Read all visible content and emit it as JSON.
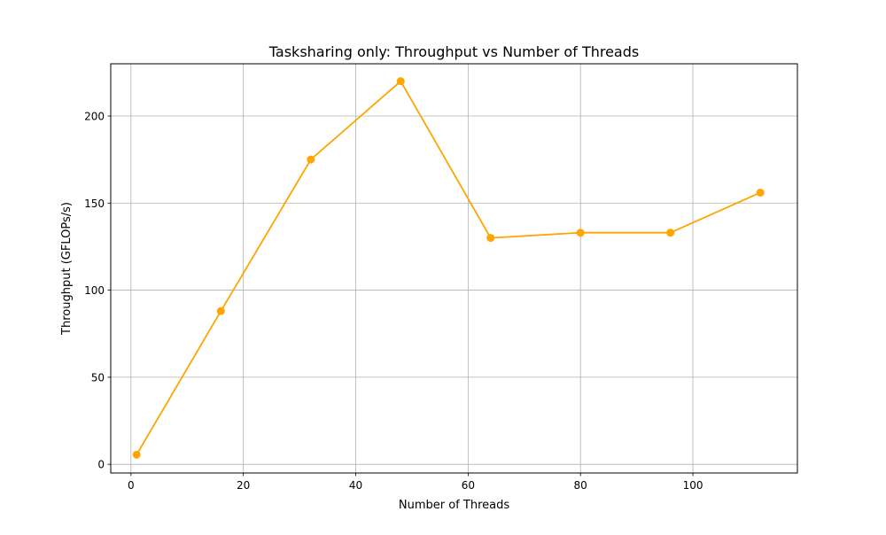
{
  "chart_data": {
    "type": "line",
    "title": "Tasksharing only: Throughput vs Number of Threads",
    "xlabel": "Number of Threads",
    "ylabel": "Throughput (GFLOPs/s)",
    "xlim": [
      -3.6,
      118.6
    ],
    "ylim": [
      -5,
      230
    ],
    "xticks": [
      0,
      20,
      40,
      60,
      80,
      100
    ],
    "yticks": [
      0,
      50,
      100,
      150,
      200
    ],
    "grid": true,
    "series": [
      {
        "color": "#ffa500",
        "marker": "circle",
        "x": [
          1,
          16,
          32,
          48,
          64,
          80,
          96,
          112
        ],
        "y": [
          5.5,
          88,
          175,
          220,
          130,
          133,
          133,
          156
        ]
      }
    ]
  }
}
